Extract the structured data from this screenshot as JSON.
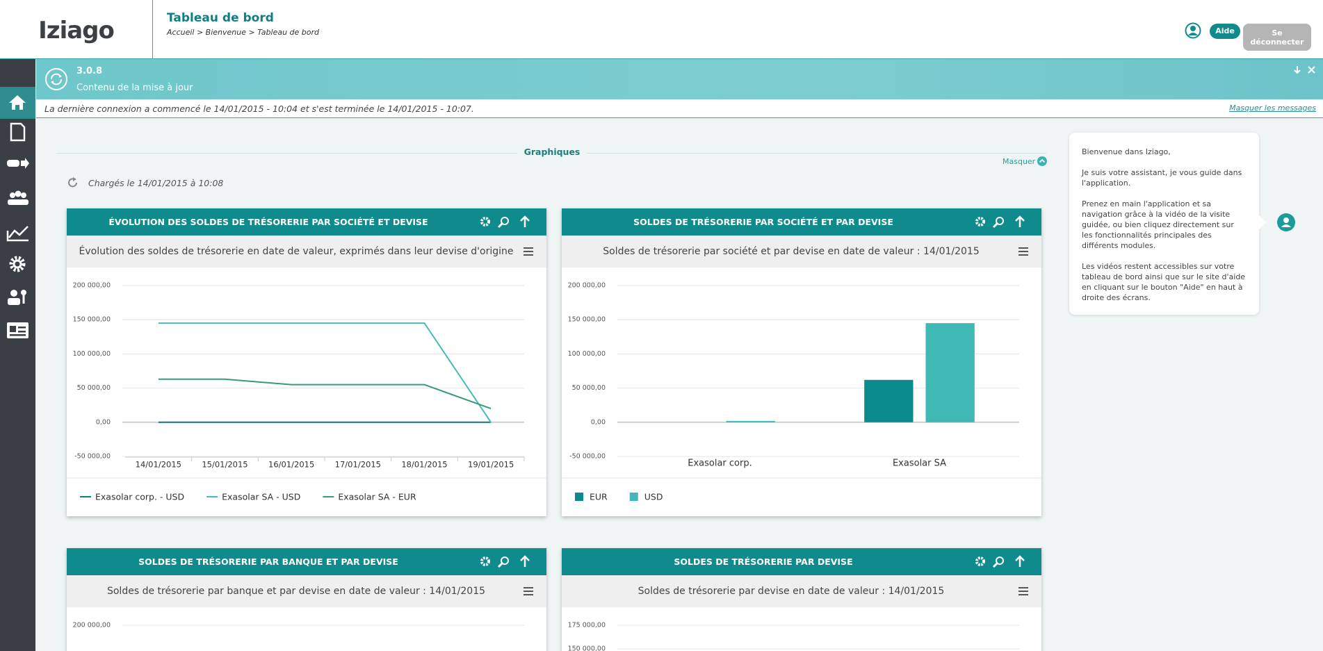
{
  "header": {
    "logo": "Iziago",
    "title": "Tableau de bord",
    "breadcrumb": "Accueil > Bienvenue > Tableau de bord",
    "help_button": "Aide",
    "logout_button": "Se déconnecter"
  },
  "banner": {
    "version": "3.0.8",
    "message": "Contenu de la mise à jour"
  },
  "info": {
    "text": "La dernière connexion a commencé le 14/01/2015 - 10:04 et s'est terminée le 14/01/2015 - 10:07.",
    "hide_link": "Masquer les messages"
  },
  "section": {
    "title": "Graphiques",
    "hide": "Masquer",
    "loaded": "Chargés le 14/01/2015 à 10:08"
  },
  "assistant": {
    "paragraphs": [
      "Bienvenue dans Iziago,",
      "Je suis votre assistant, je vous guide dans l'application.",
      "Prenez en main l'application et sa navigation grâce à la vidéo de la visite guidée, ou bien cliquez directement sur les fonctionnalités principales des différents modules.",
      "Les vidéos restent accessibles sur votre tableau de bord ainsi que sur le site d'aide en cliquant sur le bouton \"Aide\" en haut à droite des écrans."
    ]
  },
  "chart_data": [
    {
      "type": "line",
      "title": "ÉVOLUTION DES SOLDES DE TRÉSORERIE PAR SOCIÉTÉ ET DEVISE",
      "subtitle": "Évolution des soldes de trésorerie en date de valeur, exprimés dans leur devise d'origine",
      "categories": [
        "14/01/2015",
        "15/01/2015",
        "16/01/2015",
        "17/01/2015",
        "18/01/2015",
        "19/01/2015"
      ],
      "series": [
        {
          "name": "Exasolar corp. - USD",
          "color": "#0b7f83",
          "values": [
            0,
            0,
            0,
            0,
            0,
            0
          ]
        },
        {
          "name": "Exasolar SA - USD",
          "color": "#47b9b9",
          "values": [
            145000,
            145000,
            145000,
            145000,
            145000,
            0
          ]
        },
        {
          "name": "Exasolar SA - EUR",
          "color": "#379a7c",
          "values": [
            63000,
            63000,
            55000,
            55000,
            55000,
            20000
          ]
        }
      ],
      "ylim": [
        -50000,
        200000
      ],
      "yticks": [
        {
          "value": -50000,
          "label": "-50 000,00"
        },
        {
          "value": 0,
          "label": "0,00"
        },
        {
          "value": 50000,
          "label": "50 000,00"
        },
        {
          "value": 100000,
          "label": "100 000,00"
        },
        {
          "value": 150000,
          "label": "150 000,00"
        },
        {
          "value": 200000,
          "label": "200 000,00"
        }
      ],
      "grid": true
    },
    {
      "type": "bar",
      "title": "SOLDES DE TRÉSORERIE PAR SOCIÉTÉ ET PAR DEVISE",
      "subtitle": "Soldes de trésorerie par société et par devise en date de valeur : 14/01/2015",
      "categories": [
        "Exasolar corp.",
        "Exasolar SA"
      ],
      "series": [
        {
          "name": "EUR",
          "color": "#0b8a8c",
          "values": [
            0,
            62000
          ]
        },
        {
          "name": "USD",
          "color": "#3fb8b6",
          "values": [
            2000,
            145000
          ]
        }
      ],
      "ylim": [
        -50000,
        200000
      ],
      "yticks": [
        {
          "value": -50000,
          "label": "-50 000,00"
        },
        {
          "value": 0,
          "label": "0,00"
        },
        {
          "value": 50000,
          "label": "50 000,00"
        },
        {
          "value": 100000,
          "label": "100 000,00"
        },
        {
          "value": 150000,
          "label": "150 000,00"
        },
        {
          "value": 200000,
          "label": "200 000,00"
        }
      ],
      "grid": true
    },
    {
      "title": "SOLDES DE TRÉSORERIE PAR BANQUE ET PAR DEVISE",
      "subtitle": "Soldes de trésorerie par banque et par devise en date de valeur : 14/01/2015",
      "yticks": [
        {
          "value": 200000,
          "label": "200 000,00"
        }
      ],
      "grid": true
    },
    {
      "title": "SOLDES DE TRÉSORERIE PAR DEVISE",
      "subtitle": "Soldes de trésorerie par devise en date de valeur : 14/01/2015",
      "yticks": [
        {
          "value": 175000,
          "label": "175 000,00"
        },
        {
          "value": 150000,
          "label": "150 000,00"
        }
      ],
      "grid": true
    }
  ]
}
